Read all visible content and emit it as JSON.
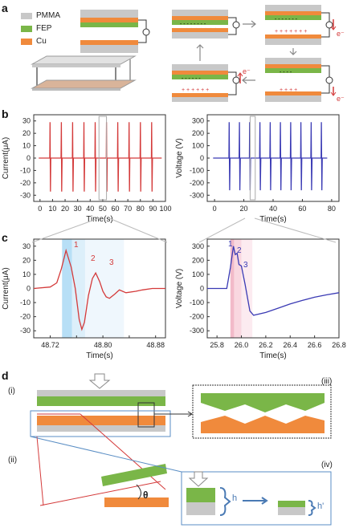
{
  "panels": {
    "a": "a",
    "b": "b",
    "c": "c",
    "d": "d"
  },
  "legend": [
    {
      "label": "PMMA",
      "color": "#c8c8c8"
    },
    {
      "label": "FEP",
      "color": "#7ab648"
    },
    {
      "label": "Cu",
      "color": "#f08a3c"
    }
  ],
  "colors": {
    "current": "#d43a3a",
    "voltage": "#3a3ab4",
    "pmma": "#c8c8c8",
    "fep": "#7ab648",
    "cu": "#f08a3c",
    "blue_shade": "#a8d4f0",
    "pink_shade": "#f4b6c6"
  },
  "electron_label": "e⁻",
  "d_labels": {
    "i": "(i)",
    "ii": "(ii)",
    "iii": "(iii)",
    "iv": "(iv)",
    "theta": "θ",
    "h": "h",
    "h_prime": "h'"
  },
  "peak_labels": [
    "1",
    "2",
    "3"
  ],
  "chart_data": [
    {
      "type": "line",
      "name": "b-current",
      "ylabel": "Current(μA)",
      "xlabel": "Time(s)",
      "xlim": [
        -5,
        100
      ],
      "ylim": [
        -35,
        35
      ],
      "x_ticks": [
        0,
        10,
        20,
        30,
        40,
        50,
        60,
        70,
        80,
        90,
        100
      ],
      "y_ticks": [
        -30,
        -20,
        -10,
        0,
        10,
        20,
        30
      ],
      "spike_times": [
        8,
        17,
        26,
        35,
        44,
        53,
        62,
        71,
        80,
        89
      ],
      "spike_amplitude": [
        29,
        -27
      ],
      "color": "#d43a3a"
    },
    {
      "type": "line",
      "name": "b-voltage",
      "ylabel": "Voltage (V)",
      "xlabel": "Time(s)",
      "xlim": [
        -5,
        85
      ],
      "ylim": [
        -350,
        350
      ],
      "x_ticks": [
        0,
        20,
        40,
        60,
        80
      ],
      "y_ticks": [
        -300,
        -200,
        -100,
        0,
        100,
        200,
        300
      ],
      "spike_times": [
        10,
        17,
        24,
        31,
        38,
        45,
        52,
        59,
        66,
        73
      ],
      "spike_amplitude": [
        290,
        -260
      ],
      "color": "#3a3ab4"
    },
    {
      "type": "line",
      "name": "c-current",
      "ylabel": "Current(μA)",
      "xlabel": "Time(s)",
      "xlim": [
        48.695,
        48.895
      ],
      "ylim": [
        -35,
        35
      ],
      "x_ticks": [
        48.72,
        48.76,
        48.8,
        48.84,
        48.88
      ],
      "x_tick_labels": [
        "48.72",
        "",
        "48.80",
        "",
        "48.88"
      ],
      "y_ticks": [
        -30,
        -20,
        -10,
        0,
        10,
        20,
        30
      ],
      "points": [
        [
          48.695,
          0
        ],
        [
          48.72,
          1
        ],
        [
          48.73,
          4
        ],
        [
          48.737,
          14
        ],
        [
          48.744,
          27
        ],
        [
          48.752,
          15
        ],
        [
          48.758,
          0
        ],
        [
          48.764,
          -22
        ],
        [
          48.768,
          -29
        ],
        [
          48.772,
          -24
        ],
        [
          48.778,
          -5
        ],
        [
          48.784,
          7
        ],
        [
          48.789,
          11
        ],
        [
          48.795,
          5
        ],
        [
          48.8,
          -2
        ],
        [
          48.805,
          -6
        ],
        [
          48.81,
          -7
        ],
        [
          48.818,
          -4
        ],
        [
          48.825,
          -1
        ],
        [
          48.835,
          -3
        ],
        [
          48.85,
          -2
        ],
        [
          48.86,
          -1
        ],
        [
          48.875,
          0
        ],
        [
          48.895,
          0
        ]
      ],
      "shaded": [
        [
          48.738,
          48.753
        ],
        [
          48.753,
          48.773
        ],
        [
          48.773,
          48.832
        ]
      ],
      "color": "#d43a3a"
    },
    {
      "type": "line",
      "name": "c-voltage",
      "ylabel": "Voltage (V)",
      "xlabel": "Time(s)",
      "xlim": [
        25.72,
        26.8
      ],
      "ylim": [
        -350,
        350
      ],
      "x_ticks": [
        25.8,
        26.0,
        26.2,
        26.4,
        26.6,
        26.8
      ],
      "y_ticks": [
        -300,
        -200,
        -100,
        0,
        100,
        200,
        300
      ],
      "points": [
        [
          25.72,
          0
        ],
        [
          25.88,
          0
        ],
        [
          25.91,
          150
        ],
        [
          25.935,
          300
        ],
        [
          25.95,
          240
        ],
        [
          25.965,
          250
        ],
        [
          25.98,
          170
        ],
        [
          26.0,
          160
        ],
        [
          26.03,
          30
        ],
        [
          26.07,
          -160
        ],
        [
          26.1,
          -190
        ],
        [
          26.2,
          -170
        ],
        [
          26.3,
          -140
        ],
        [
          26.4,
          -110
        ],
        [
          26.5,
          -85
        ],
        [
          26.6,
          -62
        ],
        [
          26.7,
          -45
        ],
        [
          26.8,
          -30
        ]
      ],
      "shaded": [
        [
          25.91,
          25.94
        ],
        [
          25.94,
          26.0
        ],
        [
          26.0,
          26.09
        ]
      ],
      "color": "#3a3ab4"
    }
  ]
}
